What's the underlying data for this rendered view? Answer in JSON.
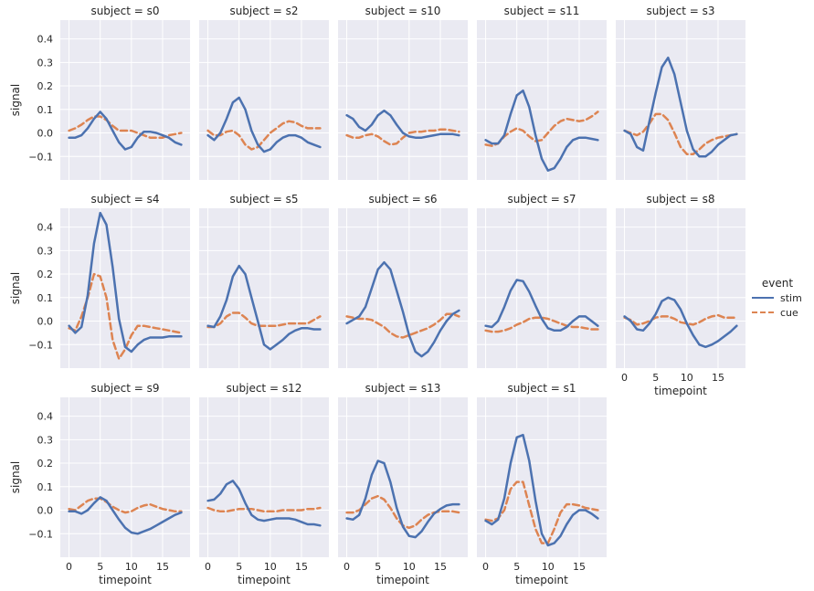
{
  "chart_data": {
    "type": "line",
    "layout": "facet-grid",
    "x_label": "timepoint",
    "y_label": "signal",
    "xlim": [
      -1.4,
      19.4
    ],
    "ylim": [
      -0.2,
      0.48
    ],
    "x_ticks": [
      0,
      5,
      10,
      15
    ],
    "y_ticks": [
      -0.1,
      0.0,
      0.1,
      0.2,
      0.3,
      0.4
    ],
    "y_tick_labels": [
      "−0.1",
      "0.0",
      "0.1",
      "0.2",
      "0.3",
      "0.4"
    ],
    "timepoints": [
      0,
      1,
      2,
      3,
      4,
      5,
      6,
      7,
      8,
      9,
      10,
      11,
      12,
      13,
      14,
      15,
      16,
      17,
      18
    ],
    "legend": {
      "title": "event",
      "entries": [
        {
          "label": "stim",
          "color": "#4c72b0",
          "dash": "solid"
        },
        {
          "label": "cue",
          "color": "#dd8452",
          "dash": "dashed"
        }
      ]
    },
    "colors": {
      "background": "#eaeaf2",
      "grid": "#ffffff",
      "stim": "#4c72b0",
      "cue": "#dd8452"
    },
    "panels": [
      {
        "title": "subject = s0",
        "stim": [
          -0.02,
          -0.02,
          -0.01,
          0.02,
          0.06,
          0.09,
          0.06,
          0.01,
          -0.04,
          -0.07,
          -0.06,
          -0.02,
          0.005,
          0.005,
          0.0,
          -0.01,
          -0.02,
          -0.04,
          -0.05
        ],
        "cue": [
          0.01,
          0.02,
          0.035,
          0.055,
          0.07,
          0.07,
          0.055,
          0.03,
          0.01,
          0.01,
          0.01,
          0.0,
          -0.01,
          -0.02,
          -0.02,
          -0.02,
          -0.01,
          -0.005,
          0.0
        ]
      },
      {
        "title": "subject = s2",
        "stim": [
          -0.01,
          -0.03,
          0.0,
          0.06,
          0.13,
          0.15,
          0.1,
          0.01,
          -0.05,
          -0.08,
          -0.07,
          -0.04,
          -0.02,
          -0.01,
          -0.01,
          -0.02,
          -0.04,
          -0.05,
          -0.06
        ],
        "cue": [
          0.01,
          -0.01,
          -0.01,
          0.005,
          0.01,
          -0.01,
          -0.05,
          -0.07,
          -0.06,
          -0.03,
          0.0,
          0.02,
          0.04,
          0.05,
          0.045,
          0.03,
          0.02,
          0.02,
          0.02
        ]
      },
      {
        "title": "subject = s10",
        "stim": [
          0.075,
          0.06,
          0.025,
          0.01,
          0.035,
          0.075,
          0.095,
          0.075,
          0.035,
          0.0,
          -0.015,
          -0.02,
          -0.02,
          -0.015,
          -0.01,
          -0.005,
          -0.005,
          -0.005,
          -0.01
        ],
        "cue": [
          -0.01,
          -0.02,
          -0.02,
          -0.01,
          -0.005,
          -0.015,
          -0.035,
          -0.05,
          -0.045,
          -0.02,
          0.0,
          0.005,
          0.005,
          0.01,
          0.01,
          0.015,
          0.015,
          0.01,
          0.005
        ]
      },
      {
        "title": "subject = s11",
        "stim": [
          -0.03,
          -0.045,
          -0.045,
          -0.01,
          0.08,
          0.16,
          0.18,
          0.11,
          -0.01,
          -0.11,
          -0.16,
          -0.15,
          -0.11,
          -0.06,
          -0.03,
          -0.02,
          -0.02,
          -0.025,
          -0.03
        ],
        "cue": [
          -0.05,
          -0.055,
          -0.045,
          -0.015,
          0.005,
          0.02,
          0.01,
          -0.015,
          -0.035,
          -0.03,
          0.0,
          0.03,
          0.05,
          0.06,
          0.055,
          0.05,
          0.055,
          0.07,
          0.09
        ]
      },
      {
        "title": "subject = s3",
        "stim": [
          0.01,
          -0.005,
          -0.06,
          -0.075,
          0.05,
          0.17,
          0.28,
          0.32,
          0.25,
          0.13,
          0.01,
          -0.07,
          -0.1,
          -0.1,
          -0.08,
          -0.05,
          -0.03,
          -0.01,
          -0.005
        ],
        "cue": [
          0.01,
          0.0,
          -0.01,
          0.005,
          0.04,
          0.08,
          0.08,
          0.055,
          0.0,
          -0.06,
          -0.09,
          -0.09,
          -0.07,
          -0.045,
          -0.03,
          -0.02,
          -0.015,
          -0.01,
          -0.005
        ]
      },
      {
        "title": "subject = s4",
        "stim": [
          -0.02,
          -0.05,
          -0.025,
          0.11,
          0.33,
          0.46,
          0.41,
          0.23,
          0.01,
          -0.11,
          -0.13,
          -0.1,
          -0.08,
          -0.07,
          -0.07,
          -0.07,
          -0.065,
          -0.065,
          -0.065
        ],
        "cue": [
          -0.03,
          -0.04,
          0.02,
          0.1,
          0.2,
          0.19,
          0.1,
          -0.08,
          -0.16,
          -0.12,
          -0.06,
          -0.02,
          -0.02,
          -0.025,
          -0.03,
          -0.035,
          -0.04,
          -0.045,
          -0.05
        ]
      },
      {
        "title": "subject = s5",
        "stim": [
          -0.02,
          -0.025,
          0.02,
          0.09,
          0.19,
          0.235,
          0.2,
          0.1,
          0.0,
          -0.1,
          -0.12,
          -0.1,
          -0.08,
          -0.055,
          -0.04,
          -0.03,
          -0.03,
          -0.035,
          -0.035
        ],
        "cue": [
          -0.025,
          -0.025,
          -0.01,
          0.02,
          0.035,
          0.035,
          0.015,
          -0.01,
          -0.02,
          -0.02,
          -0.02,
          -0.02,
          -0.015,
          -0.01,
          -0.01,
          -0.01,
          -0.01,
          0.005,
          0.02
        ]
      },
      {
        "title": "subject = s6",
        "stim": [
          -0.01,
          0.005,
          0.02,
          0.06,
          0.14,
          0.22,
          0.25,
          0.22,
          0.13,
          0.04,
          -0.06,
          -0.13,
          -0.15,
          -0.13,
          -0.09,
          -0.04,
          0.0,
          0.03,
          0.045
        ],
        "cue": [
          0.02,
          0.015,
          0.01,
          0.01,
          0.005,
          -0.01,
          -0.025,
          -0.05,
          -0.065,
          -0.07,
          -0.06,
          -0.05,
          -0.04,
          -0.03,
          -0.015,
          0.005,
          0.03,
          0.03,
          0.02
        ]
      },
      {
        "title": "subject = s7",
        "stim": [
          -0.02,
          -0.025,
          0.0,
          0.06,
          0.13,
          0.175,
          0.17,
          0.125,
          0.065,
          0.01,
          -0.03,
          -0.04,
          -0.04,
          -0.025,
          0.0,
          0.02,
          0.02,
          0.0,
          -0.02
        ],
        "cue": [
          -0.04,
          -0.045,
          -0.045,
          -0.04,
          -0.03,
          -0.015,
          -0.005,
          0.01,
          0.015,
          0.015,
          0.01,
          0.0,
          -0.01,
          -0.02,
          -0.025,
          -0.025,
          -0.03,
          -0.035,
          -0.035
        ]
      },
      {
        "title": "subject = s8",
        "stim": [
          0.02,
          0.0,
          -0.035,
          -0.04,
          -0.01,
          0.03,
          0.085,
          0.1,
          0.09,
          0.05,
          -0.01,
          -0.06,
          -0.1,
          -0.11,
          -0.1,
          -0.085,
          -0.065,
          -0.045,
          -0.02
        ],
        "cue": [
          0.015,
          0.005,
          -0.015,
          -0.01,
          0.0,
          0.015,
          0.02,
          0.02,
          0.01,
          -0.005,
          -0.01,
          -0.015,
          -0.005,
          0.01,
          0.02,
          0.025,
          0.015,
          0.015,
          0.015
        ]
      },
      {
        "title": "subject = s9",
        "stim": [
          -0.005,
          -0.005,
          -0.015,
          0.0,
          0.03,
          0.055,
          0.04,
          0.0,
          -0.04,
          -0.075,
          -0.095,
          -0.1,
          -0.09,
          -0.08,
          -0.065,
          -0.05,
          -0.035,
          -0.02,
          -0.01
        ],
        "cue": [
          0.005,
          0.0,
          0.02,
          0.04,
          0.05,
          0.05,
          0.035,
          0.015,
          0.0,
          -0.01,
          -0.005,
          0.01,
          0.02,
          0.025,
          0.015,
          0.005,
          0.0,
          -0.005,
          -0.005
        ]
      },
      {
        "title": "subject = s12",
        "stim": [
          0.04,
          0.045,
          0.07,
          0.11,
          0.125,
          0.09,
          0.03,
          -0.02,
          -0.04,
          -0.045,
          -0.04,
          -0.035,
          -0.035,
          -0.035,
          -0.04,
          -0.05,
          -0.06,
          -0.06,
          -0.065
        ],
        "cue": [
          0.01,
          0.0,
          -0.005,
          -0.005,
          0.0,
          0.005,
          0.005,
          0.005,
          0.0,
          -0.005,
          -0.005,
          -0.005,
          0.0,
          0.0,
          0.0,
          0.0,
          0.005,
          0.005,
          0.01
        ]
      },
      {
        "title": "subject = s13",
        "stim": [
          -0.035,
          -0.04,
          -0.02,
          0.05,
          0.15,
          0.21,
          0.2,
          0.12,
          0.01,
          -0.07,
          -0.11,
          -0.115,
          -0.09,
          -0.05,
          -0.015,
          0.005,
          0.02,
          0.025,
          0.025
        ],
        "cue": [
          -0.01,
          -0.01,
          0.0,
          0.025,
          0.05,
          0.06,
          0.045,
          0.01,
          -0.035,
          -0.065,
          -0.075,
          -0.065,
          -0.04,
          -0.02,
          -0.01,
          -0.005,
          -0.005,
          -0.005,
          -0.01
        ]
      },
      {
        "title": "subject = s1",
        "stim": [
          -0.045,
          -0.06,
          -0.04,
          0.05,
          0.2,
          0.31,
          0.32,
          0.21,
          0.04,
          -0.1,
          -0.15,
          -0.14,
          -0.11,
          -0.06,
          -0.02,
          0.0,
          0.0,
          -0.015,
          -0.035
        ],
        "cue": [
          -0.04,
          -0.045,
          -0.035,
          0.0,
          0.09,
          0.12,
          0.12,
          0.02,
          -0.08,
          -0.14,
          -0.14,
          -0.08,
          -0.01,
          0.025,
          0.025,
          0.02,
          0.01,
          0.005,
          0.0
        ]
      }
    ]
  }
}
